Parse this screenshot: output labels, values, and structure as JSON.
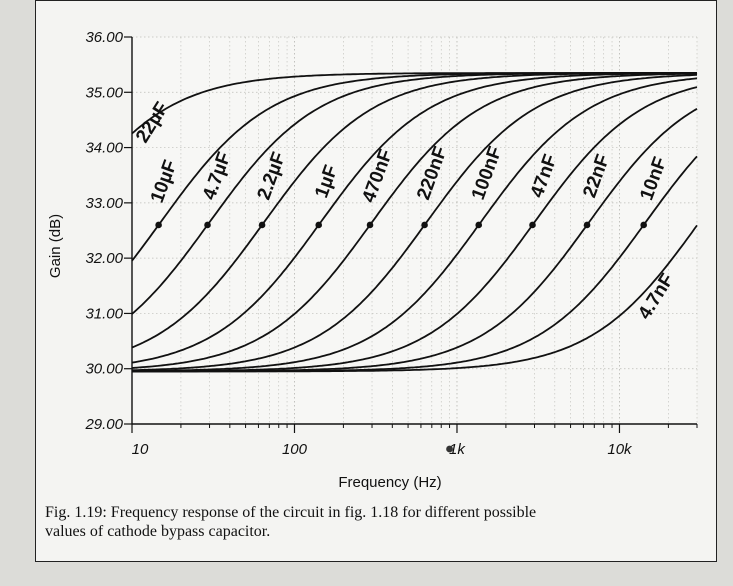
{
  "chart_data": {
    "type": "line",
    "title": "",
    "xlabel": "Frequency (Hz)",
    "ylabel": "Gain (dB)",
    "xscale": "log",
    "xlim": [
      10,
      30000
    ],
    "ylim": [
      29,
      36
    ],
    "x_ticks": [
      {
        "value": 10,
        "label": "10"
      },
      {
        "value": 100,
        "label": "100"
      },
      {
        "value": 1000,
        "label": "1k"
      },
      {
        "value": 10000,
        "label": "10k"
      }
    ],
    "y_ticks": [
      {
        "value": 29,
        "label": "29.00"
      },
      {
        "value": 30,
        "label": "30.00"
      },
      {
        "value": 31,
        "label": "31.00"
      },
      {
        "value": 32,
        "label": "32.00"
      },
      {
        "value": 33,
        "label": "33.00"
      },
      {
        "value": 34,
        "label": "34.00"
      },
      {
        "value": 35,
        "label": "35.00"
      },
      {
        "value": 36,
        "label": "36.00"
      }
    ],
    "gain_low_db": 29.95,
    "gain_high_db": 35.35,
    "series": [
      {
        "name": "22µF",
        "midpoint_hz": 3.5,
        "marker": false
      },
      {
        "name": "10µF",
        "midpoint_hz": 15,
        "marker": true
      },
      {
        "name": "4.7µF",
        "midpoint_hz": 30,
        "marker": true
      },
      {
        "name": "2.2µF",
        "midpoint_hz": 65,
        "marker": true
      },
      {
        "name": "1µF",
        "midpoint_hz": 145,
        "marker": true
      },
      {
        "name": "470nF",
        "midpoint_hz": 300,
        "marker": true
      },
      {
        "name": "220nF",
        "midpoint_hz": 650,
        "marker": true
      },
      {
        "name": "100nF",
        "midpoint_hz": 1400,
        "marker": true
      },
      {
        "name": "47nF",
        "midpoint_hz": 3000,
        "marker": true
      },
      {
        "name": "22nF",
        "midpoint_hz": 6500,
        "marker": true
      },
      {
        "name": "10nF",
        "midpoint_hz": 14500,
        "marker": true
      },
      {
        "name": "4.7nF",
        "midpoint_hz": 31000,
        "marker": false
      }
    ]
  },
  "caption": {
    "line1": "Fig. 1.19: Frequency response of the circuit in fig. 1.18 for different possible",
    "line2": "values of cathode bypass capacitor."
  },
  "colors": {
    "ink": "#111111",
    "grid": "#bdbdb8",
    "paper": "#f4f4f2"
  }
}
